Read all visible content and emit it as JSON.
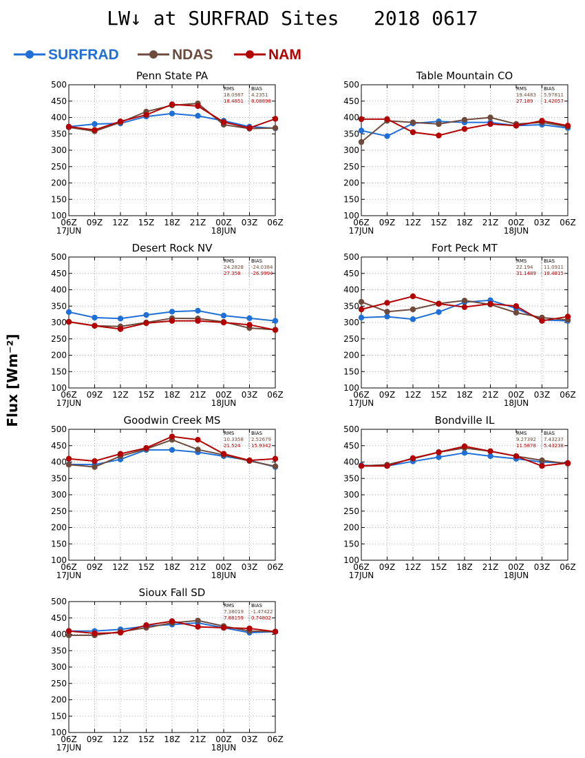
{
  "figure": {
    "title": "LW↓ at SURFRAD Sites   2018 0617",
    "ylabel": "Flux [Wm⁻²]"
  },
  "legend": [
    {
      "name": "SURFRAD",
      "color": "#1f6fd8"
    },
    {
      "name": "NDAS",
      "color": "#6e4a3c"
    },
    {
      "name": "NAM",
      "color": "#b30000"
    }
  ],
  "colors": {
    "SURFRAD": "#1f6fd8",
    "NDAS": "#6e4a3c",
    "NAM": "#b30000",
    "grid": "#999999"
  },
  "chart_data": [
    {
      "type": "line",
      "title": "Penn State PA",
      "categories": [
        "06Z",
        "09Z",
        "12Z",
        "15Z",
        "18Z",
        "21Z",
        "00Z",
        "03Z",
        "06Z"
      ],
      "date_labels": [
        "17JUN",
        "18JUN"
      ],
      "ylim": [
        100,
        500
      ],
      "yticks": [
        100,
        150,
        200,
        250,
        300,
        350,
        400,
        450,
        500
      ],
      "grid": true,
      "stats": {
        "headers": [
          "RMS",
          "BIAS"
        ],
        "NDAS": [
          "18.0987",
          "4.2351"
        ],
        "NAM": [
          "18.4851",
          "8.08898"
        ]
      },
      "series": [
        {
          "name": "SURFRAD",
          "values": [
            372,
            380,
            382,
            403,
            412,
            405,
            390,
            372,
            367
          ]
        },
        {
          "name": "NDAS",
          "values": [
            370,
            358,
            385,
            418,
            437,
            443,
            378,
            366,
            368
          ]
        },
        {
          "name": "NAM",
          "values": [
            372,
            362,
            388,
            408,
            440,
            435,
            386,
            368,
            396
          ]
        }
      ]
    },
    {
      "type": "line",
      "title": "Table Mountain CO",
      "categories": [
        "06Z",
        "09Z",
        "12Z",
        "15Z",
        "18Z",
        "21Z",
        "00Z",
        "03Z",
        "06Z"
      ],
      "date_labels": [
        "17JUN",
        "18JUN"
      ],
      "ylim": [
        100,
        500
      ],
      "yticks": [
        100,
        150,
        200,
        250,
        300,
        350,
        400,
        450,
        500
      ],
      "grid": true,
      "stats": {
        "headers": [
          "RMS",
          "BIAS"
        ],
        "NDAS": [
          "19.4483",
          "5.97811"
        ],
        "NAM": [
          "27.189",
          "1.42057"
        ]
      },
      "series": [
        {
          "name": "SURFRAD",
          "values": [
            360,
            343,
            382,
            388,
            385,
            385,
            375,
            378,
            368
          ]
        },
        {
          "name": "NDAS",
          "values": [
            325,
            390,
            385,
            380,
            393,
            400,
            380,
            385,
            372
          ]
        },
        {
          "name": "NAM",
          "values": [
            395,
            395,
            355,
            345,
            365,
            380,
            375,
            390,
            375
          ]
        }
      ]
    },
    {
      "type": "line",
      "title": "Desert Rock NV",
      "categories": [
        "06Z",
        "09Z",
        "12Z",
        "15Z",
        "18Z",
        "21Z",
        "00Z",
        "03Z",
        "06Z"
      ],
      "date_labels": [
        "17JUN",
        "18JUN"
      ],
      "ylim": [
        100,
        500
      ],
      "yticks": [
        100,
        150,
        200,
        250,
        300,
        350,
        400,
        450,
        500
      ],
      "grid": true,
      "stats": {
        "headers": [
          "RMS",
          "BIAS"
        ],
        "NDAS": [
          "24.2828",
          "-24.0384"
        ],
        "NAM": [
          "27.358",
          "-26.9994"
        ]
      },
      "series": [
        {
          "name": "SURFRAD",
          "values": [
            332,
            315,
            312,
            323,
            333,
            336,
            321,
            313,
            305
          ]
        },
        {
          "name": "NDAS",
          "values": [
            302,
            290,
            288,
            300,
            313,
            312,
            302,
            283,
            278
          ]
        },
        {
          "name": "NAM",
          "values": [
            302,
            290,
            280,
            298,
            305,
            305,
            300,
            293,
            277
          ]
        }
      ]
    },
    {
      "type": "line",
      "title": "Fort Peck MT",
      "categories": [
        "06Z",
        "09Z",
        "12Z",
        "15Z",
        "18Z",
        "21Z",
        "00Z",
        "03Z",
        "06Z"
      ],
      "date_labels": [
        "17JUN",
        "18JUN"
      ],
      "ylim": [
        100,
        500
      ],
      "yticks": [
        100,
        150,
        200,
        250,
        300,
        350,
        400,
        450,
        500
      ],
      "grid": true,
      "stats": {
        "headers": [
          "RMS",
          "BIAS"
        ],
        "NDAS": [
          "22.194",
          "11.0911"
        ],
        "NAM": [
          "31.1489",
          "18.4815"
        ]
      },
      "series": [
        {
          "name": "SURFRAD",
          "values": [
            315,
            318,
            310,
            332,
            362,
            368,
            343,
            308,
            305
          ]
        },
        {
          "name": "NDAS",
          "values": [
            363,
            333,
            340,
            358,
            367,
            355,
            330,
            315,
            308
          ]
        },
        {
          "name": "NAM",
          "values": [
            340,
            360,
            380,
            357,
            347,
            357,
            350,
            305,
            318
          ]
        }
      ]
    },
    {
      "type": "line",
      "title": "Goodwin Creek MS",
      "categories": [
        "06Z",
        "09Z",
        "12Z",
        "15Z",
        "18Z",
        "21Z",
        "00Z",
        "03Z",
        "06Z"
      ],
      "date_labels": [
        "17JUN",
        "18JUN"
      ],
      "ylim": [
        100,
        500
      ],
      "yticks": [
        100,
        150,
        200,
        250,
        300,
        350,
        400,
        450,
        500
      ],
      "grid": true,
      "stats": {
        "headers": [
          "RMS",
          "BIAS"
        ],
        "NDAS": [
          "10.3358",
          "2.52679"
        ],
        "NAM": [
          "21.524",
          "15.9342"
        ]
      },
      "series": [
        {
          "name": "SURFRAD",
          "values": [
            393,
            392,
            408,
            437,
            437,
            430,
            418,
            405,
            385
          ]
        },
        {
          "name": "NDAS",
          "values": [
            392,
            385,
            418,
            440,
            468,
            438,
            422,
            403,
            387
          ]
        },
        {
          "name": "NAM",
          "values": [
            410,
            403,
            425,
            443,
            478,
            468,
            425,
            405,
            410
          ]
        }
      ]
    },
    {
      "type": "line",
      "title": "Bondville IL",
      "categories": [
        "06Z",
        "09Z",
        "12Z",
        "15Z",
        "18Z",
        "21Z",
        "00Z",
        "03Z",
        "06Z"
      ],
      "date_labels": [
        "17JUN",
        "18JUN"
      ],
      "ylim": [
        100,
        500
      ],
      "yticks": [
        100,
        150,
        200,
        250,
        300,
        350,
        400,
        450,
        500
      ],
      "grid": true,
      "stats": {
        "headers": [
          "RMS",
          "BIAS"
        ],
        "NDAS": [
          "9.27392",
          "7.43237"
        ],
        "NAM": [
          "11.5878",
          "5.43238"
        ]
      },
      "series": [
        {
          "name": "SURFRAD",
          "values": [
            390,
            388,
            402,
            415,
            428,
            418,
            410,
            400,
            397
          ]
        },
        {
          "name": "NDAS",
          "values": [
            388,
            392,
            410,
            430,
            443,
            433,
            418,
            405,
            395
          ]
        },
        {
          "name": "NAM",
          "values": [
            388,
            388,
            412,
            430,
            448,
            433,
            418,
            388,
            397
          ]
        }
      ]
    },
    {
      "type": "line",
      "title": "Sioux Fall SD",
      "categories": [
        "06Z",
        "09Z",
        "12Z",
        "15Z",
        "18Z",
        "21Z",
        "00Z",
        "03Z",
        "06Z"
      ],
      "date_labels": [
        "17JUN",
        "18JUN"
      ],
      "ylim": [
        100,
        500
      ],
      "yticks": [
        100,
        150,
        200,
        250,
        300,
        350,
        400,
        450,
        500
      ],
      "grid": true,
      "stats": {
        "headers": [
          "RMS",
          "BIAS"
        ],
        "NDAS": [
          "7.38019",
          "-1.47422"
        ],
        "NAM": [
          "7.88159",
          "0.74802"
        ]
      },
      "series": [
        {
          "name": "SURFRAD",
          "values": [
            410,
            410,
            415,
            425,
            430,
            435,
            420,
            405,
            408
          ]
        },
        {
          "name": "NDAS",
          "values": [
            397,
            397,
            408,
            420,
            435,
            442,
            425,
            410,
            408
          ]
        },
        {
          "name": "NAM",
          "values": [
            410,
            403,
            405,
            428,
            440,
            423,
            420,
            418,
            408
          ]
        }
      ]
    }
  ]
}
